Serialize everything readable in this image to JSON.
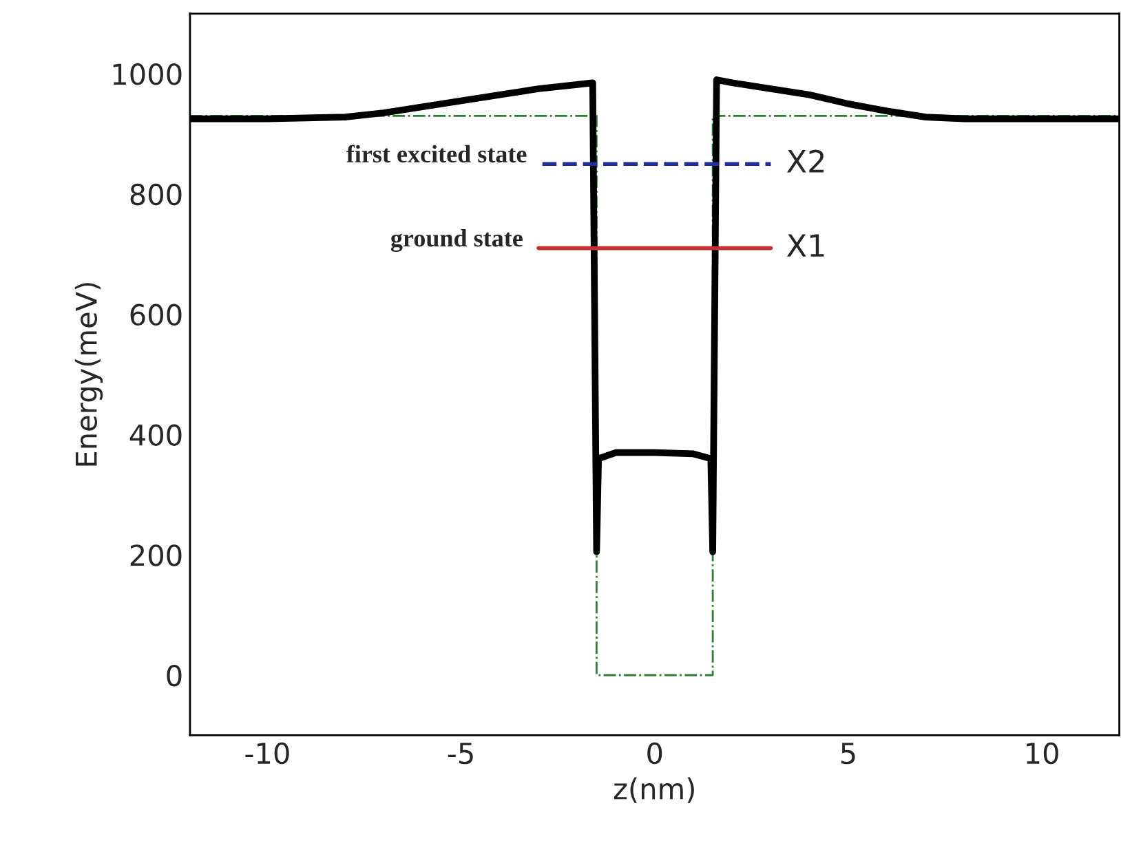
{
  "chart_data": {
    "type": "line",
    "xlabel": "z(nm)",
    "ylabel": "Energy(meV)",
    "xlim": [
      -12,
      12
    ],
    "xticks": [
      -10,
      -5,
      0,
      5,
      10
    ],
    "ylim": [
      -100,
      1100
    ],
    "yticks": [
      0,
      200,
      400,
      600,
      800,
      1000
    ],
    "grid": false,
    "legend": false,
    "series": [
      {
        "color": "#2e7d32",
        "line_style": "dashdot",
        "x": [
          -12,
          -1.5,
          -1.5,
          1.5,
          1.5,
          12
        ],
        "values": [
          930,
          930,
          0,
          0,
          930,
          930
        ]
      },
      {
        "color": "#000000",
        "line_style": "solid",
        "x": [
          -12,
          -10,
          -8,
          -7,
          -6,
          -5,
          -4,
          -3,
          -2,
          -1.6,
          -1.5,
          -1.45,
          -1,
          0,
          1,
          1.45,
          1.5,
          1.6,
          2,
          3,
          4,
          5,
          6,
          7,
          8,
          10,
          12
        ],
        "values": [
          925,
          925,
          928,
          935,
          945,
          955,
          965,
          975,
          982,
          985,
          205,
          360,
          370,
          370,
          368,
          360,
          205,
          990,
          985,
          975,
          965,
          950,
          938,
          928,
          925,
          925,
          925
        ]
      },
      {
        "color": "#1f2f9f",
        "line_style": "dashed",
        "x": [
          -2.9,
          3.0
        ],
        "values": [
          850,
          850
        ]
      },
      {
        "color": "#c03030",
        "line_style": "solid",
        "x": [
          -3.0,
          3.0
        ],
        "values": [
          710,
          710
        ]
      }
    ],
    "annotations": [
      {
        "text": "first excited state",
        "x": -2.9,
        "y": 850
      },
      {
        "text": "ground state",
        "x": -3.0,
        "y": 710
      },
      {
        "text": "X2",
        "x": 3.0,
        "y": 850
      },
      {
        "text": "X1",
        "x": 3.0,
        "y": 710
      }
    ]
  }
}
